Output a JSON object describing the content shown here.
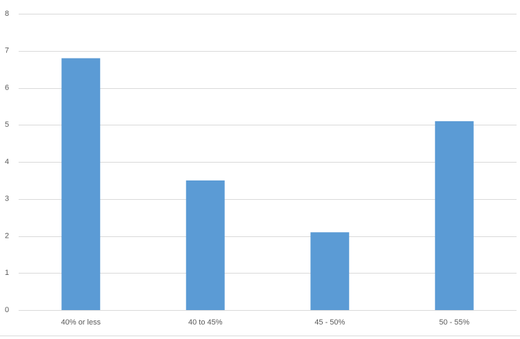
{
  "chart_data": {
    "type": "bar",
    "categories": [
      "40% or less",
      "40 to 45%",
      "45 - 50%",
      "50 - 55%"
    ],
    "values": [
      6.8,
      3.5,
      2.1,
      5.1
    ],
    "color": "#5b9bd5",
    "ylim": [
      0,
      8
    ],
    "yticks": [
      0,
      1,
      2,
      3,
      4,
      5,
      6,
      7,
      8
    ],
    "grid": true
  }
}
